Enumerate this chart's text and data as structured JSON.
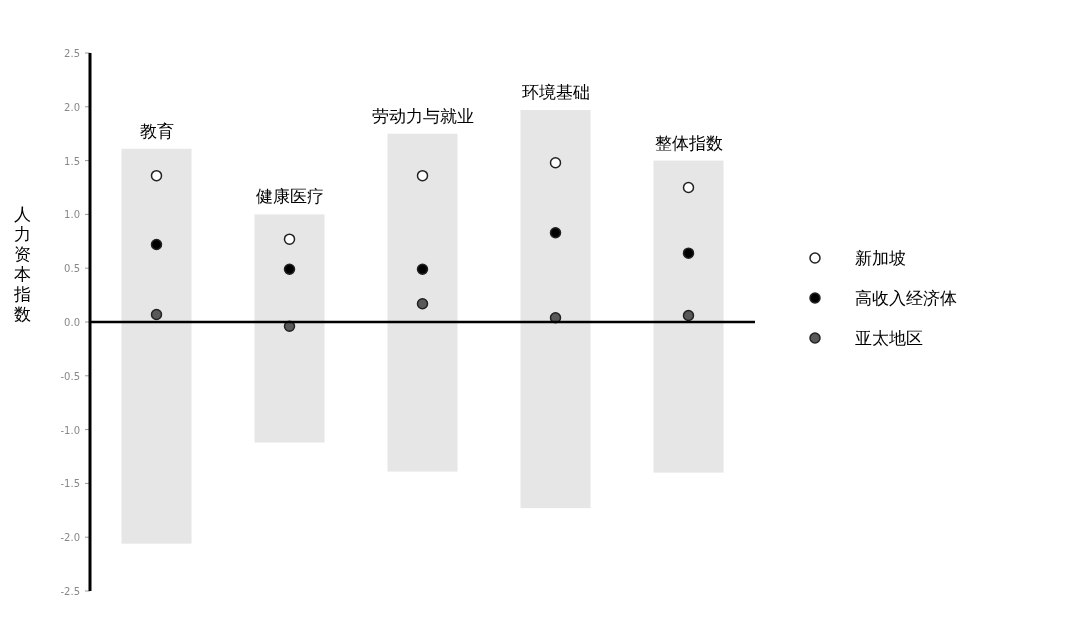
{
  "chart_data": {
    "type": "bar",
    "ylabel": "人力资本指数",
    "categories": [
      "教育",
      "健康医疗",
      "劳动力与就业",
      "环境基础",
      "整体指数"
    ],
    "ylim": [
      -2.5,
      2.5
    ],
    "yticks": [
      {
        "value": 2.5,
        "label": "2.5"
      },
      {
        "value": 2.0,
        "label": "2.0"
      },
      {
        "value": 1.5,
        "label": "1.5"
      },
      {
        "value": 1.0,
        "label": "1.0"
      },
      {
        "value": 0.5,
        "label": "0.5"
      },
      {
        "value": 0,
        "label": "0.0"
      },
      {
        "value": -0.5,
        "label": "-0.5"
      },
      {
        "value": -1.0,
        "label": "-1.0"
      },
      {
        "value": -1.5,
        "label": "-1.5"
      },
      {
        "value": -2.0,
        "label": "-2.0"
      },
      {
        "value": -2.5,
        "label": "-2.5"
      }
    ],
    "legend": "right",
    "marker": "circle",
    "series": [
      {
        "color": "#e6e6e6",
        "base": [
          -2.06,
          -1.12,
          -1.39,
          -1.73,
          -1.4
        ],
        "values": [
          3.67,
          2.12,
          3.14,
          3.7,
          2.9
        ]
      },
      {
        "type": "scatter",
        "name": "新加坡",
        "color": "#ffffff",
        "values": [
          1.36,
          0.77,
          1.36,
          1.48,
          1.25
        ]
      },
      {
        "type": "scatter",
        "name": "高收入经济体",
        "color": "#000000",
        "values": [
          0.72,
          0.49,
          0.49,
          0.83,
          0.64
        ]
      },
      {
        "type": "scatter",
        "name": "亚太地区",
        "color": "#595959",
        "values": [
          0.07,
          -0.04,
          0.17,
          0.04,
          0.06
        ]
      }
    ]
  }
}
